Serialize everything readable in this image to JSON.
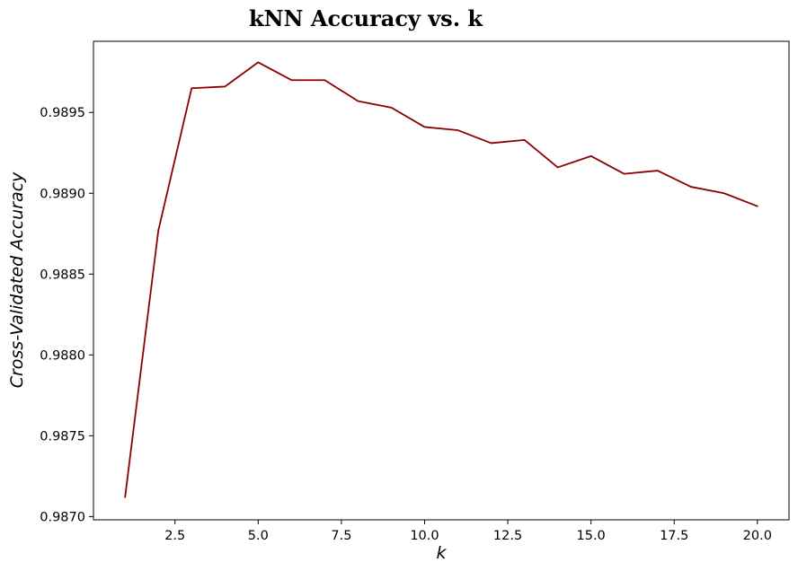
{
  "chart_data": {
    "type": "line",
    "title": "kNN Accuracy vs. k",
    "xlabel": "k",
    "ylabel": "Cross-Validated Accuracy",
    "xlim": [
      0.05,
      20.95
    ],
    "ylim": [
      0.98698,
      0.98994
    ],
    "xticks": [
      2.5,
      5.0,
      7.5,
      10.0,
      12.5,
      15.0,
      17.5,
      20.0
    ],
    "xtick_labels": [
      "2.5",
      "5.0",
      "7.5",
      "10.0",
      "12.5",
      "15.0",
      "17.5",
      "20.0"
    ],
    "yticks": [
      0.987,
      0.9875,
      0.988,
      0.9885,
      0.989,
      0.9895
    ],
    "ytick_labels": [
      "0.9870",
      "0.9875",
      "0.9880",
      "0.9885",
      "0.9890",
      "0.9895"
    ],
    "grid": false,
    "line_color": "#8b0000",
    "series": [
      {
        "x": [
          1,
          2,
          3,
          4,
          5,
          6,
          7,
          8,
          9,
          10,
          11,
          12,
          13,
          14,
          15,
          16,
          17,
          18,
          19,
          20
        ],
        "values": [
          0.98712,
          0.98877,
          0.98965,
          0.98966,
          0.98981,
          0.9897,
          0.9897,
          0.98957,
          0.98953,
          0.98941,
          0.98939,
          0.98931,
          0.98933,
          0.98916,
          0.98923,
          0.98912,
          0.98914,
          0.98904,
          0.989,
          0.98892
        ]
      }
    ]
  }
}
